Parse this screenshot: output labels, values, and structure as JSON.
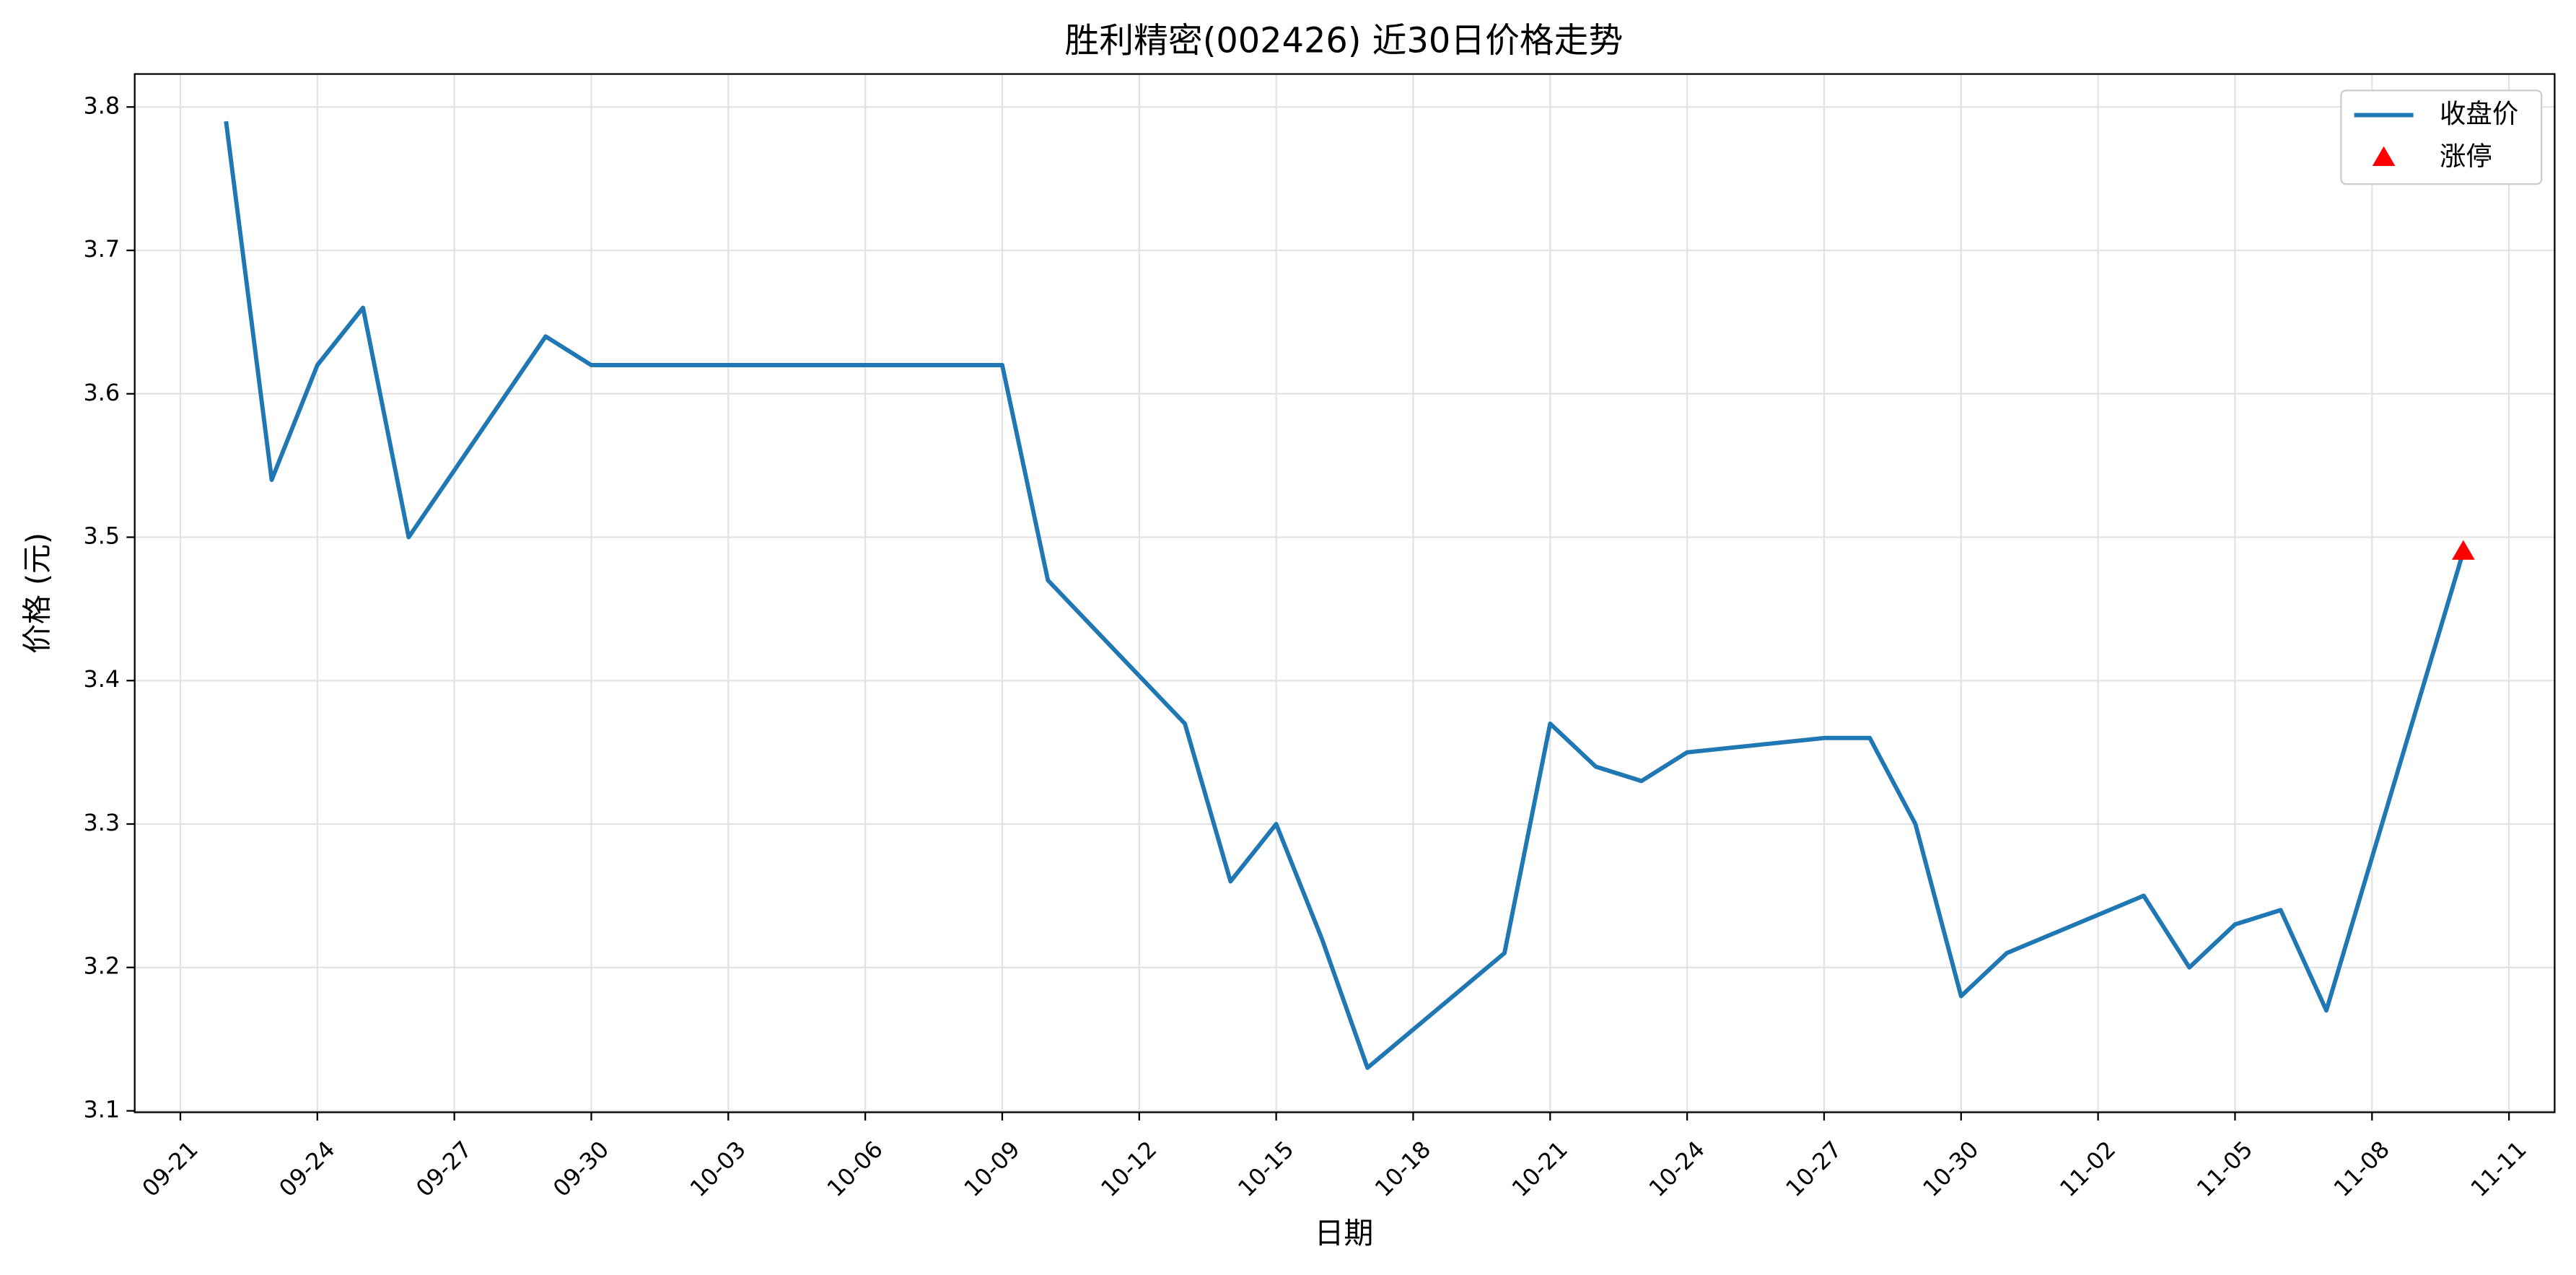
{
  "chart_data": {
    "type": "line",
    "title": "胜利精密(002426) 近30日价格走势",
    "x_label": "日期",
    "y_label": "价格 (元)",
    "series": [
      {
        "name": "收盘价",
        "type": "line",
        "color": "#1f77b4",
        "x": [
          "09-22",
          "09-23",
          "09-24",
          "09-25",
          "09-26",
          "09-29",
          "09-30",
          "10-09",
          "10-10",
          "10-13",
          "10-14",
          "10-15",
          "10-16",
          "10-17",
          "10-20",
          "10-21",
          "10-22",
          "10-23",
          "10-24",
          "10-27",
          "10-28",
          "10-29",
          "10-30",
          "10-31",
          "11-03",
          "11-04",
          "11-05",
          "11-06",
          "11-07",
          "11-10"
        ],
        "values": [
          3.79,
          3.54,
          3.62,
          3.66,
          3.5,
          3.64,
          3.62,
          3.62,
          3.47,
          3.37,
          3.26,
          3.3,
          3.22,
          3.13,
          3.21,
          3.37,
          3.34,
          3.33,
          3.35,
          3.36,
          3.36,
          3.3,
          3.18,
          3.21,
          3.25,
          3.2,
          3.23,
          3.24,
          3.17,
          3.49
        ]
      },
      {
        "name": "涨停",
        "type": "scatter",
        "marker": "triangle",
        "color": "#ff0000",
        "x": [
          "11-10"
        ],
        "values": [
          3.49
        ]
      }
    ],
    "xlim": [
      "09-20",
      "11-12"
    ],
    "xticks": [
      "09-21",
      "09-24",
      "09-27",
      "09-30",
      "10-03",
      "10-06",
      "10-09",
      "10-12",
      "10-15",
      "10-18",
      "10-21",
      "10-24",
      "10-27",
      "10-30",
      "11-02",
      "11-05",
      "11-08",
      "11-11"
    ],
    "ylim": [
      3.099,
      3.823
    ],
    "yticks": [
      3.1,
      3.2,
      3.3,
      3.4,
      3.5,
      3.6,
      3.7,
      3.8
    ],
    "grid": true,
    "legend": "upper right"
  }
}
